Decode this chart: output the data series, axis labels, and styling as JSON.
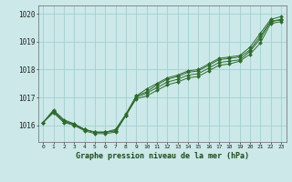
{
  "bg_color": "#cce8e8",
  "grid_color": "#99cccc",
  "line_color": "#2d6a2d",
  "marker_color": "#2d6a2d",
  "title": "Graphe pression niveau de la mer (hPa)",
  "xlim": [
    -0.5,
    23.5
  ],
  "ylim": [
    1015.4,
    1020.3
  ],
  "yticks": [
    1016,
    1017,
    1018,
    1019,
    1020
  ],
  "xticks": [
    0,
    1,
    2,
    3,
    4,
    5,
    6,
    7,
    8,
    9,
    10,
    11,
    12,
    13,
    14,
    15,
    16,
    17,
    18,
    19,
    20,
    21,
    22,
    23
  ],
  "series": [
    [
      1016.1,
      1016.55,
      1016.2,
      1016.05,
      1015.85,
      1015.75,
      1015.75,
      1015.8,
      1016.35,
      1016.95,
      1017.05,
      1017.25,
      1017.45,
      1017.55,
      1017.7,
      1017.75,
      1017.95,
      1018.15,
      1018.2,
      1018.3,
      1018.55,
      1018.95,
      1019.65,
      1019.72
    ],
    [
      1016.1,
      1016.5,
      1016.15,
      1016.05,
      1015.85,
      1015.75,
      1015.75,
      1015.8,
      1016.35,
      1017.0,
      1017.15,
      1017.35,
      1017.55,
      1017.65,
      1017.8,
      1017.85,
      1018.05,
      1018.25,
      1018.3,
      1018.35,
      1018.65,
      1019.1,
      1019.72,
      1019.78
    ],
    [
      1016.1,
      1016.5,
      1016.15,
      1016.0,
      1015.85,
      1015.75,
      1015.75,
      1015.85,
      1016.4,
      1017.05,
      1017.2,
      1017.45,
      1017.65,
      1017.75,
      1017.9,
      1017.95,
      1018.15,
      1018.35,
      1018.4,
      1018.45,
      1018.7,
      1019.2,
      1019.73,
      1019.8
    ],
    [
      1016.1,
      1016.45,
      1016.1,
      1016.0,
      1015.8,
      1015.7,
      1015.7,
      1015.75,
      1016.35,
      1017.05,
      1017.3,
      1017.5,
      1017.7,
      1017.8,
      1017.95,
      1018.0,
      1018.2,
      1018.4,
      1018.45,
      1018.5,
      1018.8,
      1019.3,
      1019.8,
      1019.9
    ]
  ]
}
